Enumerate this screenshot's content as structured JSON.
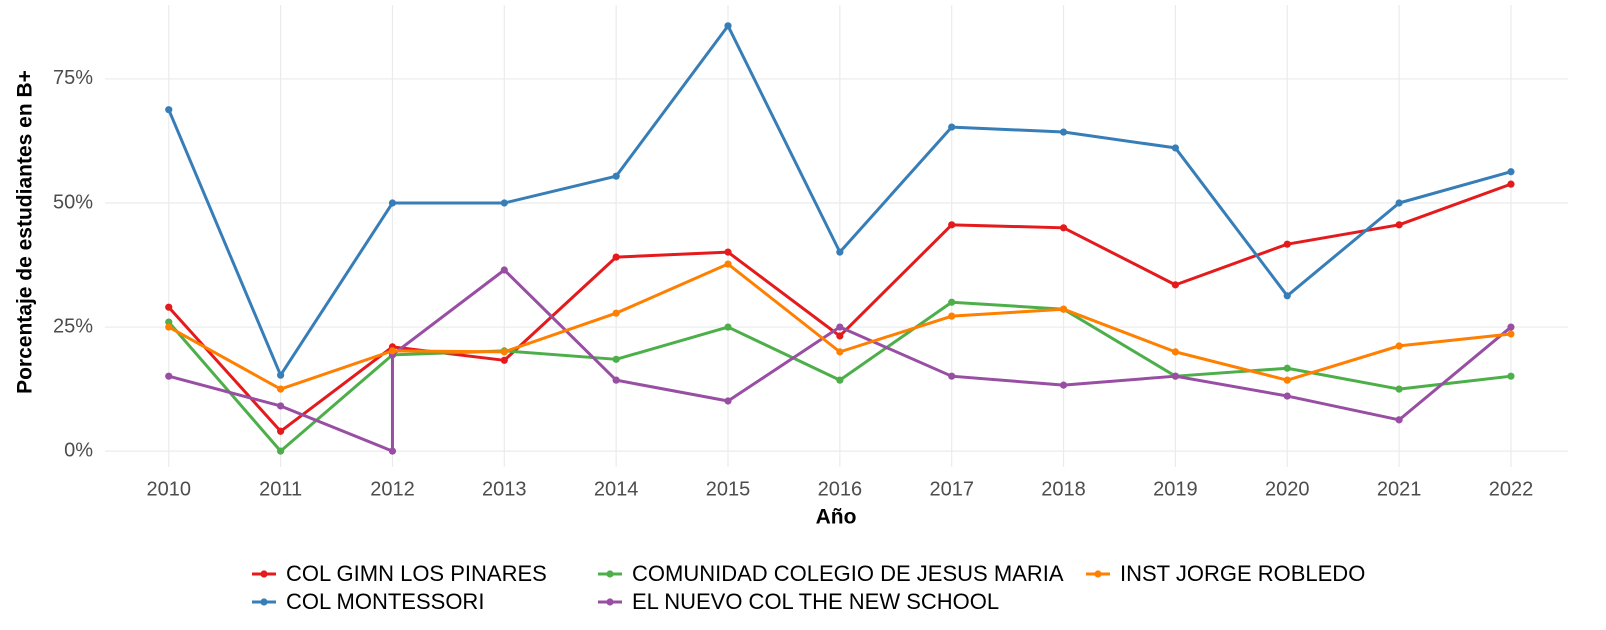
{
  "chart_data": {
    "type": "line",
    "x_label": "Año",
    "y_label": "Porcentaje de estudiantes en B+",
    "x": [
      2010,
      2011,
      2012,
      2013,
      2014,
      2015,
      2016,
      2017,
      2018,
      2019,
      2020,
      2021,
      2022
    ],
    "xlim": [
      2009.43,
      2022.51
    ],
    "xticks": [
      2010,
      2011,
      2012,
      2013,
      2014,
      2015,
      2016,
      2017,
      2018,
      2019,
      2020,
      2021,
      2022
    ],
    "ylim": [
      -3.2,
      89.9
    ],
    "yticks": [
      {
        "value": 0,
        "label": "0%"
      },
      {
        "value": 25,
        "label": "25%"
      },
      {
        "value": 50,
        "label": "50%"
      },
      {
        "value": 75,
        "label": "75%"
      }
    ],
    "grid": true,
    "legend_position": "bottom",
    "series": [
      {
        "name": "COL GIMN LOS PINARES",
        "color": "#e41a1c",
        "values": [
          29.0,
          4.0,
          21.0,
          18.3,
          39.1,
          40.1,
          23.2,
          45.6,
          45.0,
          33.5,
          41.7,
          45.6,
          53.8
        ]
      },
      {
        "name": "COL MONTESSORI",
        "color": "#377eb8",
        "values": [
          68.8,
          15.3,
          50,
          50,
          55.4,
          85.7,
          40.1,
          65.3,
          64.3,
          61.1,
          31.3,
          50,
          56.3
        ]
      },
      {
        "name": "COMUNIDAD COLEGIO DE JESUS MARIA",
        "color": "#4daf4a",
        "values": [
          26,
          0,
          19.4,
          20.2,
          18.5,
          25,
          14.3,
          30,
          28.6,
          15.1,
          16.7,
          12.5,
          15.1
        ]
      },
      {
        "name": "EL NUEVO COL THE NEW SCHOOL",
        "color": "#984ea3",
        "x": [
          2010,
          2011,
          2012,
          2012,
          2013,
          2014,
          2015,
          2016,
          2017,
          2018,
          2019,
          2020,
          2021,
          2022
        ],
        "values": [
          15.1,
          9.1,
          0,
          19.4,
          36.5,
          14.3,
          10.1,
          25,
          15.1,
          13.3,
          15.1,
          11.1,
          6.3,
          25
        ]
      },
      {
        "name": "INST JORGE ROBLEDO",
        "color": "#ff7f00",
        "values": [
          25,
          12.5,
          20.2,
          20,
          27.8,
          37.7,
          20,
          27.2,
          28.6,
          20,
          14.3,
          21.2,
          23.6
        ]
      }
    ]
  }
}
